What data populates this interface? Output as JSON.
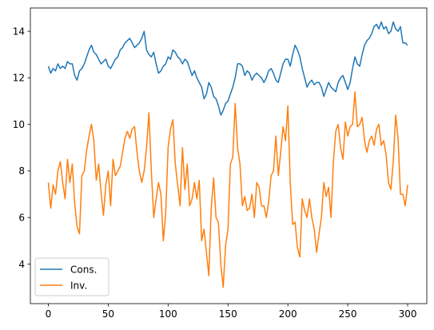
{
  "chart_data": {
    "type": "line",
    "title": "",
    "xlabel": "",
    "ylabel": "",
    "xlim": [
      -15,
      316
    ],
    "ylim": [
      2.3,
      15.0
    ],
    "xticks": [
      0,
      50,
      100,
      150,
      200,
      250,
      300
    ],
    "yticks": [
      4,
      6,
      8,
      10,
      12,
      14
    ],
    "grid": false,
    "legend_position": "lower-left",
    "series": [
      {
        "name": "Cons.",
        "color": "#1f77b4",
        "x": [
          0,
          2,
          4,
          6,
          8,
          10,
          12,
          14,
          16,
          18,
          20,
          22,
          24,
          26,
          28,
          30,
          32,
          34,
          36,
          38,
          40,
          42,
          44,
          46,
          48,
          50,
          52,
          54,
          56,
          58,
          60,
          62,
          64,
          66,
          68,
          70,
          72,
          74,
          76,
          78,
          80,
          82,
          84,
          86,
          88,
          90,
          92,
          94,
          96,
          98,
          100,
          102,
          104,
          106,
          108,
          110,
          112,
          114,
          116,
          118,
          120,
          122,
          124,
          126,
          128,
          130,
          132,
          134,
          136,
          138,
          140,
          142,
          144,
          146,
          148,
          150,
          152,
          154,
          156,
          158,
          160,
          162,
          164,
          166,
          168,
          170,
          172,
          174,
          176,
          178,
          180,
          182,
          184,
          186,
          188,
          190,
          192,
          194,
          196,
          198,
          200,
          202,
          204,
          206,
          208,
          210,
          212,
          214,
          216,
          218,
          220,
          222,
          224,
          226,
          228,
          230,
          232,
          234,
          236,
          238,
          240,
          242,
          244,
          246,
          248,
          250,
          252,
          254,
          256,
          258,
          260,
          262,
          264,
          266,
          268,
          270,
          272,
          274,
          276,
          278,
          280,
          282,
          284,
          286,
          288,
          290,
          292,
          294,
          296,
          298,
          300
        ],
        "values": [
          12.5,
          12.2,
          12.4,
          12.3,
          12.6,
          12.4,
          12.5,
          12.4,
          12.7,
          12.6,
          12.6,
          12.1,
          11.9,
          12.3,
          12.4,
          12.6,
          12.9,
          13.2,
          13.4,
          13.1,
          13.0,
          12.8,
          12.6,
          12.7,
          12.8,
          12.5,
          12.4,
          12.6,
          12.8,
          12.9,
          13.2,
          13.3,
          13.5,
          13.6,
          13.7,
          13.5,
          13.3,
          13.4,
          13.5,
          13.7,
          14.0,
          13.2,
          13.0,
          12.9,
          13.1,
          12.6,
          12.2,
          12.3,
          12.5,
          12.6,
          12.9,
          12.8,
          13.2,
          13.1,
          12.9,
          12.8,
          12.6,
          12.8,
          12.7,
          12.4,
          12.1,
          12.3,
          12.0,
          11.8,
          11.6,
          11.1,
          11.3,
          11.8,
          11.6,
          11.2,
          11.1,
          10.8,
          10.4,
          10.6,
          10.9,
          11.0,
          11.3,
          11.6,
          12.0,
          12.6,
          12.6,
          12.5,
          12.1,
          12.3,
          12.2,
          11.9,
          12.1,
          12.2,
          12.1,
          12.0,
          11.8,
          12.0,
          12.3,
          12.4,
          12.2,
          11.9,
          11.8,
          12.2,
          12.6,
          12.8,
          12.8,
          12.5,
          13.0,
          13.4,
          13.2,
          12.9,
          12.4,
          12.0,
          11.6,
          11.8,
          11.9,
          11.7,
          11.8,
          11.8,
          11.6,
          11.2,
          11.5,
          11.8,
          11.6,
          11.5,
          11.4,
          11.8,
          12.0,
          12.1,
          11.8,
          11.5,
          11.8,
          12.4,
          12.9,
          12.6,
          12.5,
          13.0,
          13.4,
          13.6,
          13.7,
          13.9,
          14.2,
          14.3,
          14.1,
          14.4,
          14.1,
          14.2,
          13.9,
          14.0,
          14.4,
          14.1,
          14.0,
          14.2,
          13.5,
          13.5,
          13.4
        ]
      },
      {
        "name": "Inv.",
        "color": "#ff7f0e",
        "x": [
          0,
          2,
          4,
          6,
          8,
          10,
          12,
          14,
          16,
          18,
          20,
          22,
          24,
          26,
          28,
          30,
          32,
          34,
          36,
          38,
          40,
          42,
          44,
          46,
          48,
          50,
          52,
          54,
          56,
          58,
          60,
          62,
          64,
          66,
          68,
          70,
          72,
          74,
          76,
          78,
          80,
          82,
          84,
          86,
          88,
          90,
          92,
          94,
          96,
          98,
          100,
          102,
          104,
          106,
          108,
          110,
          112,
          114,
          116,
          118,
          120,
          122,
          124,
          126,
          128,
          130,
          132,
          134,
          136,
          138,
          140,
          142,
          144,
          146,
          148,
          150,
          152,
          154,
          156,
          158,
          160,
          162,
          164,
          166,
          168,
          170,
          172,
          174,
          176,
          178,
          180,
          182,
          184,
          186,
          188,
          190,
          192,
          194,
          196,
          198,
          200,
          202,
          204,
          206,
          208,
          210,
          212,
          214,
          216,
          218,
          220,
          222,
          224,
          226,
          228,
          230,
          232,
          234,
          236,
          238,
          240,
          242,
          244,
          246,
          248,
          250,
          252,
          254,
          256,
          258,
          260,
          262,
          264,
          266,
          268,
          270,
          272,
          274,
          276,
          278,
          280,
          282,
          284,
          286,
          288,
          290,
          292,
          294,
          296,
          298,
          300
        ],
        "values": [
          7.5,
          6.4,
          7.4,
          7.0,
          8.0,
          8.4,
          7.5,
          6.8,
          8.5,
          7.5,
          8.3,
          6.6,
          5.6,
          5.3,
          7.8,
          8.0,
          8.9,
          9.5,
          10.0,
          9.3,
          7.6,
          8.3,
          7.1,
          6.1,
          7.4,
          8.0,
          6.5,
          8.5,
          7.8,
          8.0,
          8.2,
          8.8,
          9.4,
          9.7,
          9.4,
          9.8,
          9.9,
          8.8,
          8.0,
          7.5,
          8.0,
          9.0,
          10.5,
          8.0,
          6.0,
          6.8,
          7.5,
          7.0,
          5.0,
          6.2,
          9.0,
          9.8,
          10.2,
          8.3,
          7.4,
          6.5,
          9.0,
          7.2,
          8.3,
          6.5,
          6.8,
          7.5,
          6.8,
          7.6,
          5.0,
          5.5,
          4.5,
          3.5,
          6.4,
          7.7,
          6.0,
          5.8,
          4.0,
          3.0,
          4.8,
          5.5,
          8.3,
          8.6,
          10.9,
          9.0,
          8.3,
          6.5,
          6.9,
          6.3,
          6.4,
          7.0,
          6.0,
          7.5,
          7.3,
          6.5,
          6.5,
          6.0,
          6.7,
          7.8,
          8.0,
          9.5,
          7.8,
          8.8,
          9.9,
          9.3,
          10.8,
          7.5,
          5.7,
          5.8,
          4.7,
          4.3,
          6.8,
          6.3,
          6.0,
          6.8,
          6.0,
          5.5,
          4.5,
          5.3,
          6.0,
          7.5,
          6.9,
          7.3,
          6.0,
          8.4,
          9.7,
          10.0,
          9.0,
          8.5,
          10.1,
          9.5,
          9.9,
          10.0,
          11.4,
          9.9,
          10.0,
          10.3,
          9.3,
          8.8,
          9.3,
          9.5,
          9.1,
          9.8,
          10.0,
          9.1,
          9.3,
          8.7,
          7.5,
          7.2,
          8.4,
          10.4,
          9.4,
          7.0,
          7.0,
          6.5,
          7.4
        ]
      }
    ]
  }
}
